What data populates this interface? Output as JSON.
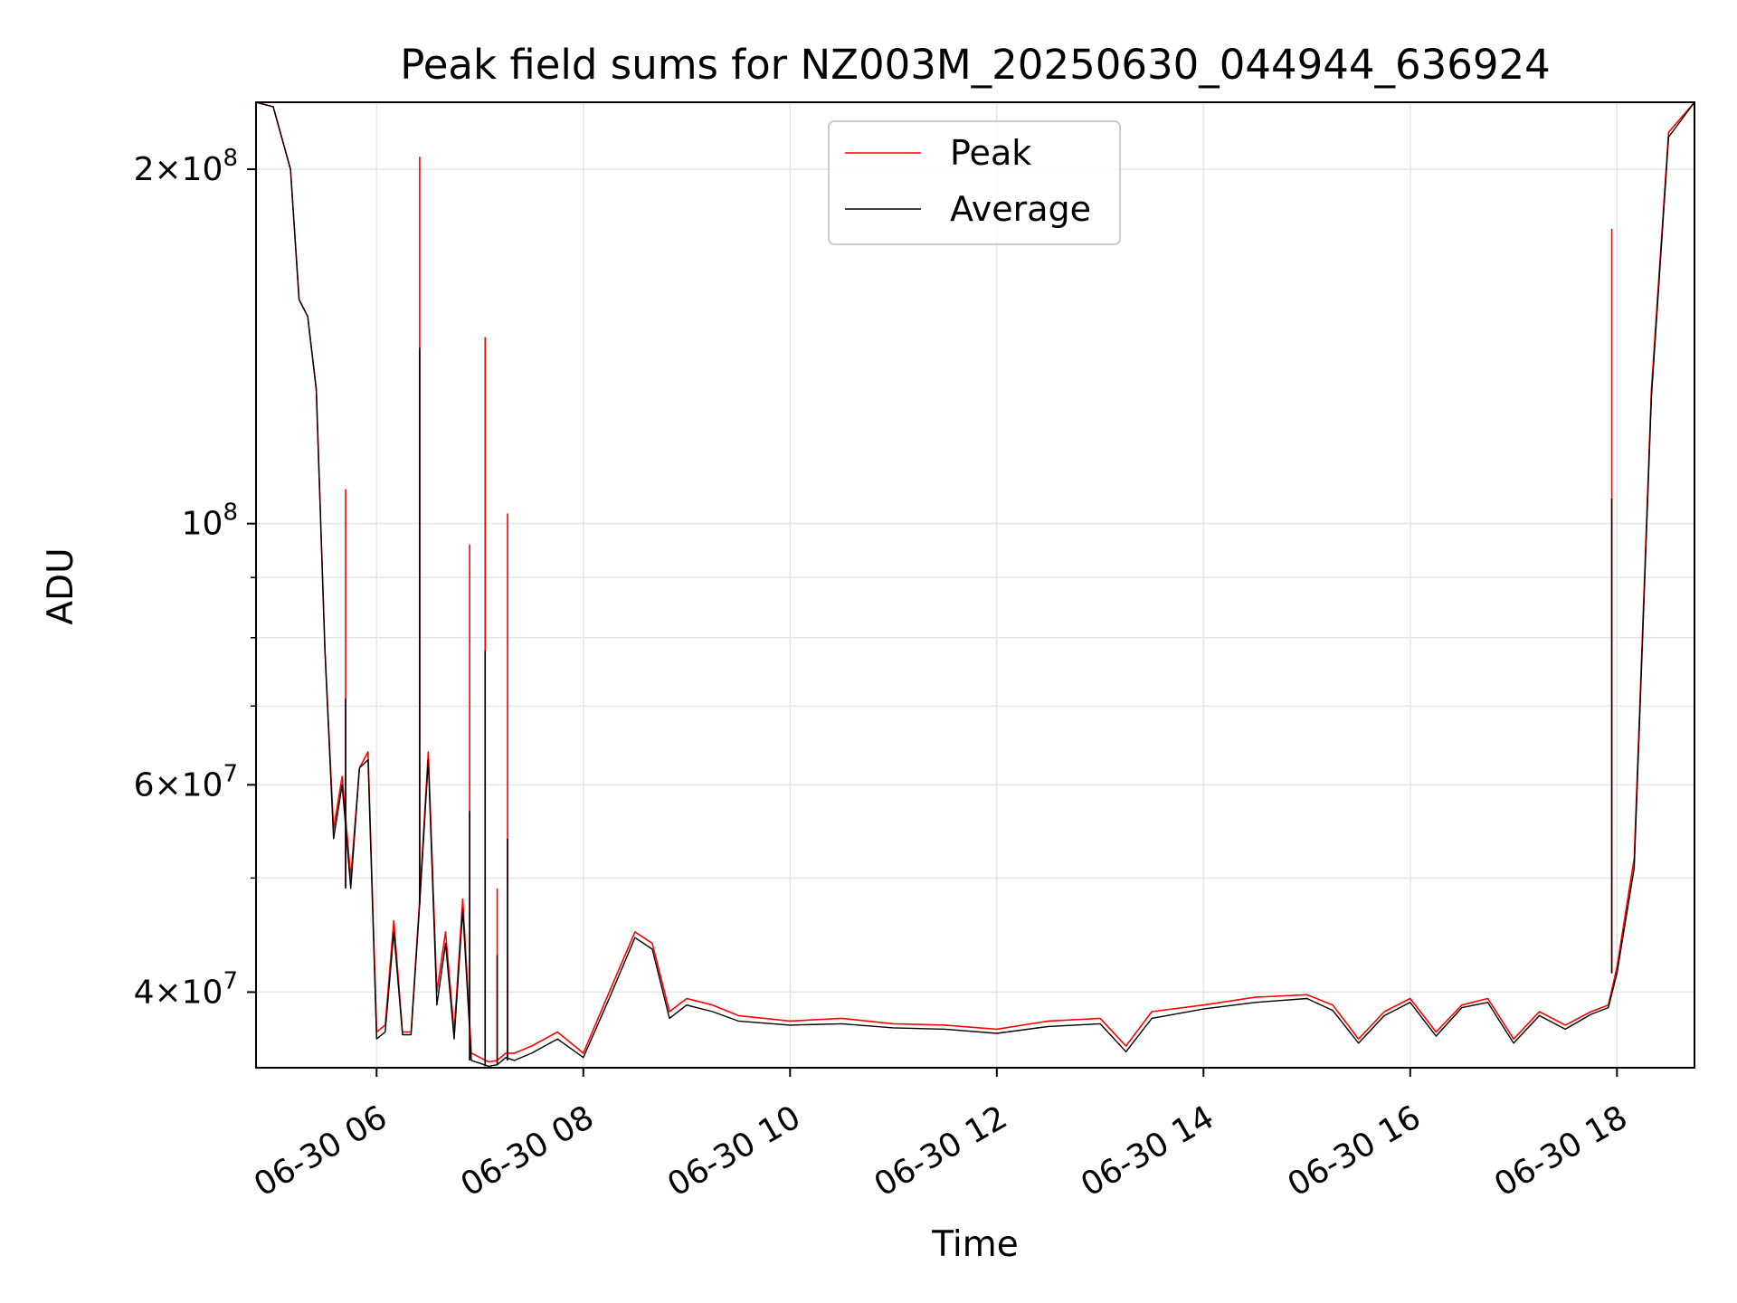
{
  "chart_data": {
    "type": "line",
    "title": "Peak field sums for NZ003M_20250630_044944_636924",
    "xlabel": "Time",
    "ylabel": "ADU",
    "yscale": "log",
    "ylim": [
      34500000,
      228000000
    ],
    "xlim": [
      "06-30 04:50",
      "06-30 18:45"
    ],
    "grid": true,
    "legend": {
      "position": "upper center"
    },
    "x_ticks": [
      {
        "value": "06-30 06:00",
        "label": "06-30 06"
      },
      {
        "value": "06-30 08:00",
        "label": "06-30 08"
      },
      {
        "value": "06-30 10:00",
        "label": "06-30 10"
      },
      {
        "value": "06-30 12:00",
        "label": "06-30 12"
      },
      {
        "value": "06-30 14:00",
        "label": "06-30 14"
      },
      {
        "value": "06-30 16:00",
        "label": "06-30 16"
      },
      {
        "value": "06-30 18:00",
        "label": "06-30 18"
      }
    ],
    "y_ticks": [
      {
        "value": 40000000,
        "coef": "4",
        "exp": "7"
      },
      {
        "value": 60000000,
        "coef": "6",
        "exp": "7"
      },
      {
        "value": 100000000,
        "coef": "",
        "exp": "8"
      },
      {
        "value": 200000000,
        "coef": "2",
        "exp": "8"
      }
    ],
    "y_minor_ticks": [
      50000000,
      70000000,
      80000000,
      90000000
    ],
    "series": [
      {
        "name": "Peak",
        "color": "#ff0000",
        "x": [
          "06-30 04:50",
          "06-30 05:00",
          "06-30 05:10",
          "06-30 05:15",
          "06-30 05:20",
          "06-30 05:25",
          "06-30 05:30",
          "06-30 05:35",
          "06-30 05:40",
          "06-30 05:45",
          "06-30 05:50",
          "06-30 05:55",
          "06-30 06:00",
          "06-30 06:05",
          "06-30 06:10",
          "06-30 06:15",
          "06-30 06:20",
          "06-30 06:25",
          "06-30 06:30",
          "06-30 06:35",
          "06-30 06:40",
          "06-30 06:45",
          "06-30 06:50",
          "06-30 06:55",
          "06-30 07:00",
          "06-30 07:05",
          "06-30 07:10",
          "06-30 07:15",
          "06-30 07:20",
          "06-30 07:30",
          "06-30 07:45",
          "06-30 08:00",
          "06-30 08:15",
          "06-30 08:30",
          "06-30 08:40",
          "06-30 08:50",
          "06-30 09:00",
          "06-30 09:15",
          "06-30 09:30",
          "06-30 10:00",
          "06-30 10:30",
          "06-30 11:00",
          "06-30 11:30",
          "06-30 12:00",
          "06-30 12:30",
          "06-30 13:00",
          "06-30 13:15",
          "06-30 13:30",
          "06-30 14:00",
          "06-30 14:30",
          "06-30 15:00",
          "06-30 15:15",
          "06-30 15:30",
          "06-30 15:45",
          "06-30 16:00",
          "06-30 16:15",
          "06-30 16:30",
          "06-30 16:45",
          "06-30 17:00",
          "06-30 17:15",
          "06-30 17:30",
          "06-30 17:45",
          "06-30 17:55",
          "06-30 18:00",
          "06-30 18:10",
          "06-30 18:20",
          "06-30 18:30",
          "06-30 18:45"
        ],
        "y": [
          228000000,
          226000000,
          200000000,
          155000000,
          150000000,
          130000000,
          78000000,
          55000000,
          61000000,
          50000000,
          62000000,
          64000000,
          37000000,
          37500000,
          46000000,
          37000000,
          37000000,
          48000000,
          64000000,
          40000000,
          45000000,
          37000000,
          48000000,
          35500000,
          35200000,
          34900000,
          35000000,
          35500000,
          35500000,
          36000000,
          37000000,
          35500000,
          40000000,
          45000000,
          44000000,
          38500000,
          39500000,
          39000000,
          38200000,
          37800000,
          38000000,
          37600000,
          37500000,
          37200000,
          37800000,
          38000000,
          36000000,
          38500000,
          39000000,
          39600000,
          39800000,
          39000000,
          36500000,
          38500000,
          39500000,
          37000000,
          39000000,
          39500000,
          36500000,
          38500000,
          37500000,
          38500000,
          39000000,
          42000000,
          52000000,
          130000000,
          215000000,
          228000000
        ]
      },
      {
        "name": "Average",
        "color": "#000000",
        "x": [
          "06-30 04:50",
          "06-30 05:00",
          "06-30 05:10",
          "06-30 05:15",
          "06-30 05:20",
          "06-30 05:25",
          "06-30 05:30",
          "06-30 05:35",
          "06-30 05:40",
          "06-30 05:45",
          "06-30 05:50",
          "06-30 05:55",
          "06-30 06:00",
          "06-30 06:05",
          "06-30 06:10",
          "06-30 06:15",
          "06-30 06:20",
          "06-30 06:25",
          "06-30 06:30",
          "06-30 06:35",
          "06-30 06:40",
          "06-30 06:45",
          "06-30 06:50",
          "06-30 06:55",
          "06-30 07:00",
          "06-30 07:05",
          "06-30 07:10",
          "06-30 07:15",
          "06-30 07:20",
          "06-30 07:30",
          "06-30 07:45",
          "06-30 08:00",
          "06-30 08:15",
          "06-30 08:30",
          "06-30 08:40",
          "06-30 08:50",
          "06-30 09:00",
          "06-30 09:15",
          "06-30 09:30",
          "06-30 10:00",
          "06-30 10:30",
          "06-30 11:00",
          "06-30 11:30",
          "06-30 12:00",
          "06-30 12:30",
          "06-30 13:00",
          "06-30 13:15",
          "06-30 13:30",
          "06-30 14:00",
          "06-30 14:30",
          "06-30 15:00",
          "06-30 15:15",
          "06-30 15:30",
          "06-30 15:45",
          "06-30 16:00",
          "06-30 16:15",
          "06-30 16:30",
          "06-30 16:45",
          "06-30 17:00",
          "06-30 17:15",
          "06-30 17:30",
          "06-30 17:45",
          "06-30 17:55",
          "06-30 18:00",
          "06-30 18:10",
          "06-30 18:20",
          "06-30 18:30",
          "06-30 18:45"
        ],
        "y": [
          228000000,
          226000000,
          200000000,
          155000000,
          150000000,
          130000000,
          78000000,
          54000000,
          60000000,
          49000000,
          62000000,
          63000000,
          36500000,
          37000000,
          45000000,
          36800000,
          36800000,
          47500000,
          63000000,
          39000000,
          44000000,
          36500000,
          47000000,
          35000000,
          34800000,
          34600000,
          34700000,
          35200000,
          35000000,
          35500000,
          36500000,
          35200000,
          39500000,
          44500000,
          43500000,
          38000000,
          39000000,
          38500000,
          37800000,
          37500000,
          37600000,
          37300000,
          37200000,
          36900000,
          37400000,
          37600000,
          35600000,
          38000000,
          38700000,
          39200000,
          39500000,
          38600000,
          36200000,
          38200000,
          39200000,
          36700000,
          38800000,
          39200000,
          36200000,
          38200000,
          37200000,
          38300000,
          38800000,
          41500000,
          51000000,
          128000000,
          213000000,
          228000000
        ],
        "spikes": [
          {
            "x": "06-30 05:42",
            "peak": 107000000,
            "avg": 71000000
          },
          {
            "x": "06-30 06:25",
            "peak": 205000000,
            "avg": 141000000
          },
          {
            "x": "06-30 06:54",
            "peak": 96000000,
            "avg": 57000000
          },
          {
            "x": "06-30 07:03",
            "peak": 144000000,
            "avg": 78000000
          },
          {
            "x": "06-30 07:10",
            "peak": 49000000,
            "avg": 43000000
          },
          {
            "x": "06-30 07:16",
            "peak": 102000000,
            "avg": 54000000
          },
          {
            "x": "06-30 17:57",
            "peak": 178000000,
            "avg": 105000000
          }
        ]
      }
    ]
  }
}
